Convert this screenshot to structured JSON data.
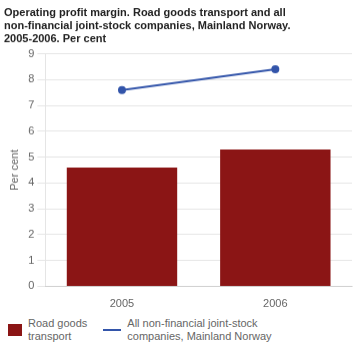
{
  "chart_data": {
    "type": "bar",
    "title": "Operating profit margin. Road goods transport and all\nnon-financial joint-stock companies, Mainland Norway.\n2005-2006. Per cent",
    "ylabel": "Per cent",
    "categories": [
      "2005",
      "2006"
    ],
    "series": [
      {
        "name": "Road goods\ntransport",
        "type": "bar",
        "color": "#8B1515",
        "values": [
          4.6,
          5.3
        ]
      },
      {
        "name": "All non-financial joint-stock\ncompanies, Mainland Norway",
        "type": "line",
        "color": "#3355AA",
        "values": [
          7.6,
          8.4
        ]
      }
    ],
    "ylim": [
      0,
      9
    ],
    "yticks": [
      0,
      1,
      2,
      3,
      4,
      5,
      6,
      7,
      8,
      9
    ],
    "grid": true,
    "legend": "bottom"
  }
}
